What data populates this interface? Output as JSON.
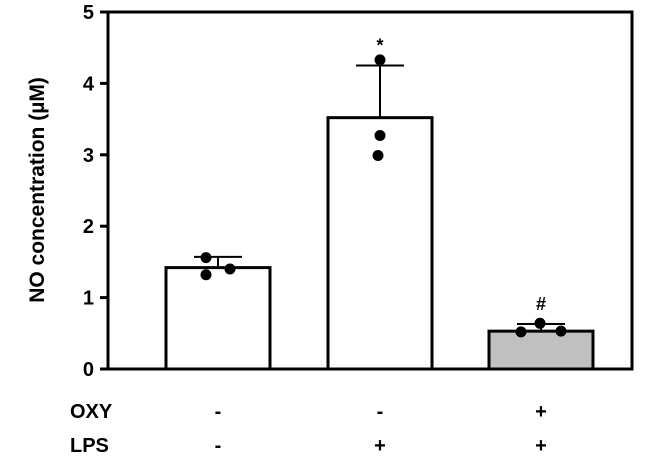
{
  "chart_data": {
    "type": "bar",
    "title": "",
    "xlabel": "",
    "ylabel": "NO concentration (µM)",
    "ylim": [
      0,
      5
    ],
    "yticks": [
      0,
      1,
      2,
      3,
      4,
      5
    ],
    "grid": false,
    "legend": "none",
    "conditions": [
      {
        "label": "OXY",
        "values": [
          "-",
          "-",
          "+"
        ]
      },
      {
        "label": "LPS",
        "values": [
          "-",
          "+",
          "+"
        ]
      }
    ],
    "bars": [
      {
        "value": 1.42,
        "error": 0.15,
        "points": [
          1.56,
          1.32,
          1.4
        ],
        "fill": "#ffffff",
        "annotation": ""
      },
      {
        "value": 3.52,
        "error": 0.73,
        "points": [
          4.33,
          3.27,
          2.99
        ],
        "fill": "#ffffff",
        "annotation": "*"
      },
      {
        "value": 0.53,
        "error": 0.1,
        "points": [
          0.64,
          0.52,
          0.53
        ],
        "fill": "#c0c0c0",
        "annotation": "#"
      }
    ]
  }
}
